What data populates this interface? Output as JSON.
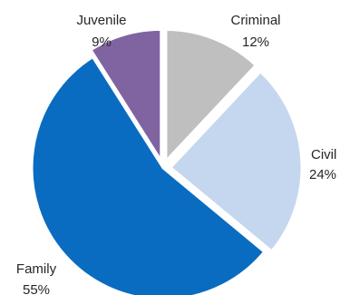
{
  "chart_data": {
    "type": "pie",
    "slices": [
      {
        "name": "Criminal",
        "value": 12,
        "label": "12%",
        "color": "#bfbfbf",
        "exploded": true
      },
      {
        "name": "Civil",
        "value": 24,
        "label": "24%",
        "color": "#c5d7ee",
        "exploded": true
      },
      {
        "name": "Family",
        "value": 55,
        "label": "55%",
        "color": "#0a6cc0",
        "exploded": false
      },
      {
        "name": "Juvenile",
        "value": 9,
        "label": "9%",
        "color": "#8064a2",
        "exploded": true
      }
    ],
    "start": "12 o'clock, clockwise",
    "legend": "none",
    "title": ""
  }
}
